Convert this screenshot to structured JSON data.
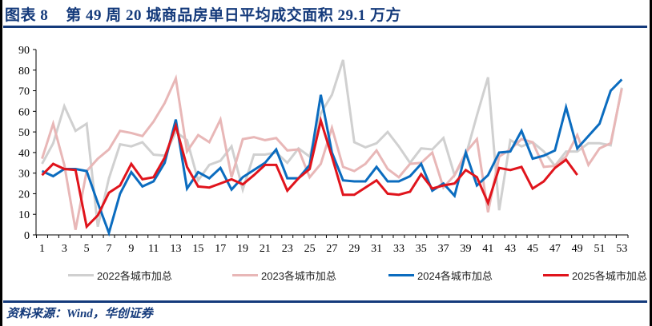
{
  "header": {
    "figure_label": "图表 8",
    "title": "第 49 周 20 城商品房单日平均成交面积 29.1 万方"
  },
  "footer": {
    "source": "资料来源：Wind，华创证券"
  },
  "colors": {
    "brand": "#143a7b",
    "s2022": "#d0d0d0",
    "s2023": "#e8b7b7",
    "s2024": "#0b6cbf",
    "s2025": "#e0141c"
  },
  "chart_data": {
    "type": "line",
    "title": "第 49 周 20 城商品房单日平均成交面积 29.1 万方",
    "xlabel": "",
    "ylabel": "",
    "ylim": [
      0,
      90
    ],
    "yticks": [
      0,
      10,
      20,
      30,
      40,
      50,
      60,
      70,
      80,
      90
    ],
    "xticks": [
      1,
      3,
      5,
      7,
      9,
      11,
      13,
      15,
      17,
      19,
      21,
      23,
      25,
      27,
      29,
      31,
      33,
      35,
      37,
      39,
      41,
      43,
      45,
      47,
      49,
      51,
      53
    ],
    "x": [
      1,
      2,
      3,
      4,
      5,
      6,
      7,
      8,
      9,
      10,
      11,
      12,
      13,
      14,
      15,
      16,
      17,
      18,
      19,
      20,
      21,
      22,
      23,
      24,
      25,
      26,
      27,
      28,
      29,
      30,
      31,
      32,
      33,
      34,
      35,
      36,
      37,
      38,
      39,
      40,
      41,
      42,
      43,
      44,
      45,
      46,
      47,
      48,
      49,
      50,
      51,
      52,
      53
    ],
    "grid": false,
    "legend_position": "bottom",
    "series": [
      {
        "name": "2022各城市加总",
        "color": "#d0d0d0",
        "values": [
          34.5,
          44.5,
          62.5,
          50.5,
          54,
          4,
          27.5,
          44,
          43,
          45,
          39,
          38.5,
          50,
          46,
          26.5,
          34,
          36,
          43,
          22,
          39,
          39,
          40,
          35,
          42,
          38,
          59,
          68,
          85,
          45,
          42.5,
          44.5,
          50,
          43,
          35,
          42,
          41.5,
          47,
          29,
          38.5,
          58,
          76.5,
          12,
          46,
          43,
          45,
          40.5,
          33.5,
          40.5,
          40.5,
          44.5,
          44.5,
          43.5,
          71.5
        ]
      },
      {
        "name": "2023各城市加总",
        "color": "#e8b7b7",
        "values": [
          37,
          54,
          34,
          2.5,
          31,
          37,
          41.5,
          50.5,
          49.5,
          48,
          55,
          64,
          76,
          40.5,
          48.5,
          45,
          56,
          28,
          46.5,
          47.5,
          46,
          47,
          41,
          41.5,
          28,
          34.5,
          52,
          33,
          31,
          34.5,
          41,
          32,
          28,
          34.5,
          35,
          40,
          23,
          29,
          40,
          46.5,
          11,
          38,
          41.5,
          46.5,
          45,
          33,
          33.5,
          38,
          48.5,
          34,
          42,
          44.5,
          71
        ]
      },
      {
        "name": "2024各城市加总",
        "color": "#0b6cbf",
        "values": [
          31,
          28.5,
          32,
          32,
          31,
          15.5,
          1,
          20,
          30.5,
          23.5,
          26,
          35,
          56,
          22.5,
          30.5,
          27.5,
          32.5,
          22,
          28,
          31.5,
          35,
          41.5,
          27.5,
          27.5,
          34,
          68,
          40,
          26.5,
          26,
          26,
          33,
          26,
          26,
          28.5,
          34.5,
          21.5,
          25,
          19,
          40,
          24,
          29,
          40,
          40.5,
          50.5,
          37,
          38.5,
          41,
          62,
          42,
          48,
          54,
          70,
          75.5
        ]
      },
      {
        "name": "2025各城市加总",
        "color": "#e0141c",
        "values": [
          29,
          34.5,
          32,
          31.5,
          4,
          9.5,
          20.5,
          24,
          34.5,
          27,
          28,
          37.5,
          53,
          33,
          23.5,
          23,
          25,
          27,
          24.5,
          29,
          34,
          34,
          21.5,
          27.5,
          32,
          55.5,
          38,
          19.5,
          19.5,
          23,
          26.5,
          20,
          19.5,
          21,
          29.5,
          22.5,
          24,
          25,
          31.5,
          28,
          15.5,
          32.5,
          31.5,
          33,
          22.5,
          26,
          32.5,
          36.5,
          29.1
        ]
      }
    ]
  },
  "legend": [
    {
      "label": "2022各城市加总",
      "color": "#d0d0d0"
    },
    {
      "label": "2023各城市加总",
      "color": "#e8b7b7"
    },
    {
      "label": "2024各城市加总",
      "color": "#0b6cbf"
    },
    {
      "label": "2025各城市加总",
      "color": "#e0141c"
    }
  ]
}
